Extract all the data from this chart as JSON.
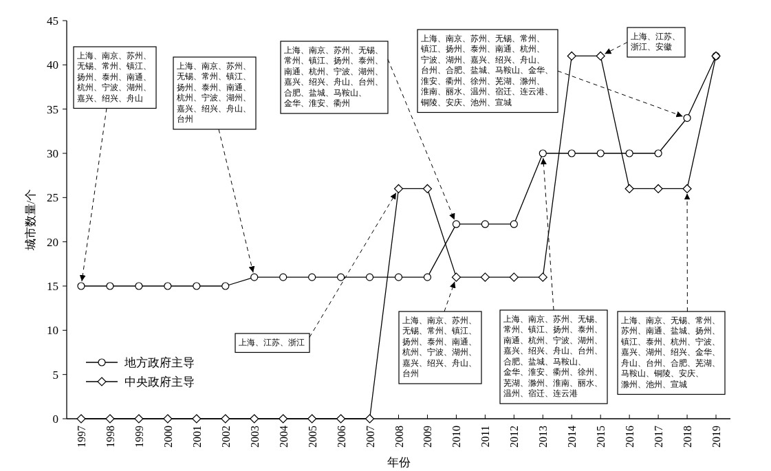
{
  "chart_data": {
    "type": "line",
    "xlabel": "年份",
    "ylabel": "城市数量/个",
    "categories": [
      "1997",
      "1998",
      "1999",
      "2000",
      "2001",
      "2002",
      "2003",
      "2004",
      "2005",
      "2006",
      "2007",
      "2008",
      "2009",
      "2010",
      "2011",
      "2012",
      "2013",
      "2014",
      "2015",
      "2016",
      "2017",
      "2018",
      "2019"
    ],
    "ylim": [
      0,
      45
    ],
    "yticks": [
      0,
      5,
      10,
      15,
      20,
      25,
      30,
      35,
      40,
      45
    ],
    "grid": false,
    "legend": "bottom left",
    "line_style": "solid",
    "series": [
      {
        "name": "地方政府主导",
        "color": "#000000",
        "marker": "circle",
        "values": [
          15,
          15,
          15,
          15,
          15,
          15,
          16,
          16,
          16,
          16,
          16,
          16,
          16,
          22,
          22,
          22,
          30,
          30,
          30,
          30,
          30,
          34,
          41
        ]
      },
      {
        "name": "中央政府主导",
        "color": "#000000",
        "marker": "diamond",
        "values": [
          0,
          0,
          0,
          0,
          0,
          0,
          0,
          0,
          0,
          0,
          0,
          26,
          26,
          16,
          16,
          16,
          16,
          41,
          41,
          26,
          26,
          26,
          41
        ]
      }
    ],
    "annotations": [
      {
        "text": "上海、南京、苏州、无锡、常州、镇江、扬州、泰州、南通、杭州、宁波、湖州、嘉兴、绍兴、舟山",
        "x": "1997",
        "y": 15
      },
      {
        "text": "上海、南京、苏州、无锡、常州、镇江、扬州、泰州、南通、杭州、宁波、湖州、嘉兴、绍兴、舟山、台州",
        "x": "2003",
        "y": 16
      },
      {
        "text": "上海、江苏、浙江",
        "x": "2008",
        "y": 26
      },
      {
        "text": "上海、南京、苏州、无锡、常州、镇江、扬州、泰州、南通、杭州、宁波、湖州、嘉兴、绍兴、舟山、台州、合肥、盐城、马鞍山、金华、淮安、衢州",
        "x": "2010",
        "y": 22
      },
      {
        "text": "上海、南京、苏州、无锡、常州、镇江、扬州、泰州、南通、杭州、宁波、湖州、嘉兴、绍兴、舟山、台州",
        "x": "2010",
        "y": 16
      },
      {
        "text": "上海、南京、苏州、无锡、常州、镇江、扬州、泰州、南通、杭州、宁波、湖州、嘉兴、绍兴、舟山、台州、合肥、盐城、马鞍山、金华、淮安、衢州、徐州、芜湖、滁州、淮南、丽水、温州、宿迁、连云港、铜陵、安庆、池州、宣城",
        "x": "2018",
        "y": 34
      },
      {
        "text": "上海、南京、苏州、无锡、常州、镇江、扬州、泰州、南通、杭州、宁波、湖州、嘉兴、绍兴、舟山、台州、合肥、盐城、马鞍山、金华、淮安、衢州、徐州、芜湖、滁州、淮南、丽水、温州、宿迁、连云港",
        "x": "2013",
        "y": 30
      },
      {
        "text": "上海、南京、无锡、常州、苏州、南通、盐城、扬州、镇江、泰州、杭州、宁波、嘉兴、湖州、绍兴、金华、舟山、台州、合肥、芜湖、马鞍山、铜陵、安庆、滁州、池州、宣城",
        "x": "2018",
        "y": 26
      },
      {
        "text": "上海、江苏、浙江、安徽",
        "x": "2015",
        "y": 41
      }
    ]
  }
}
